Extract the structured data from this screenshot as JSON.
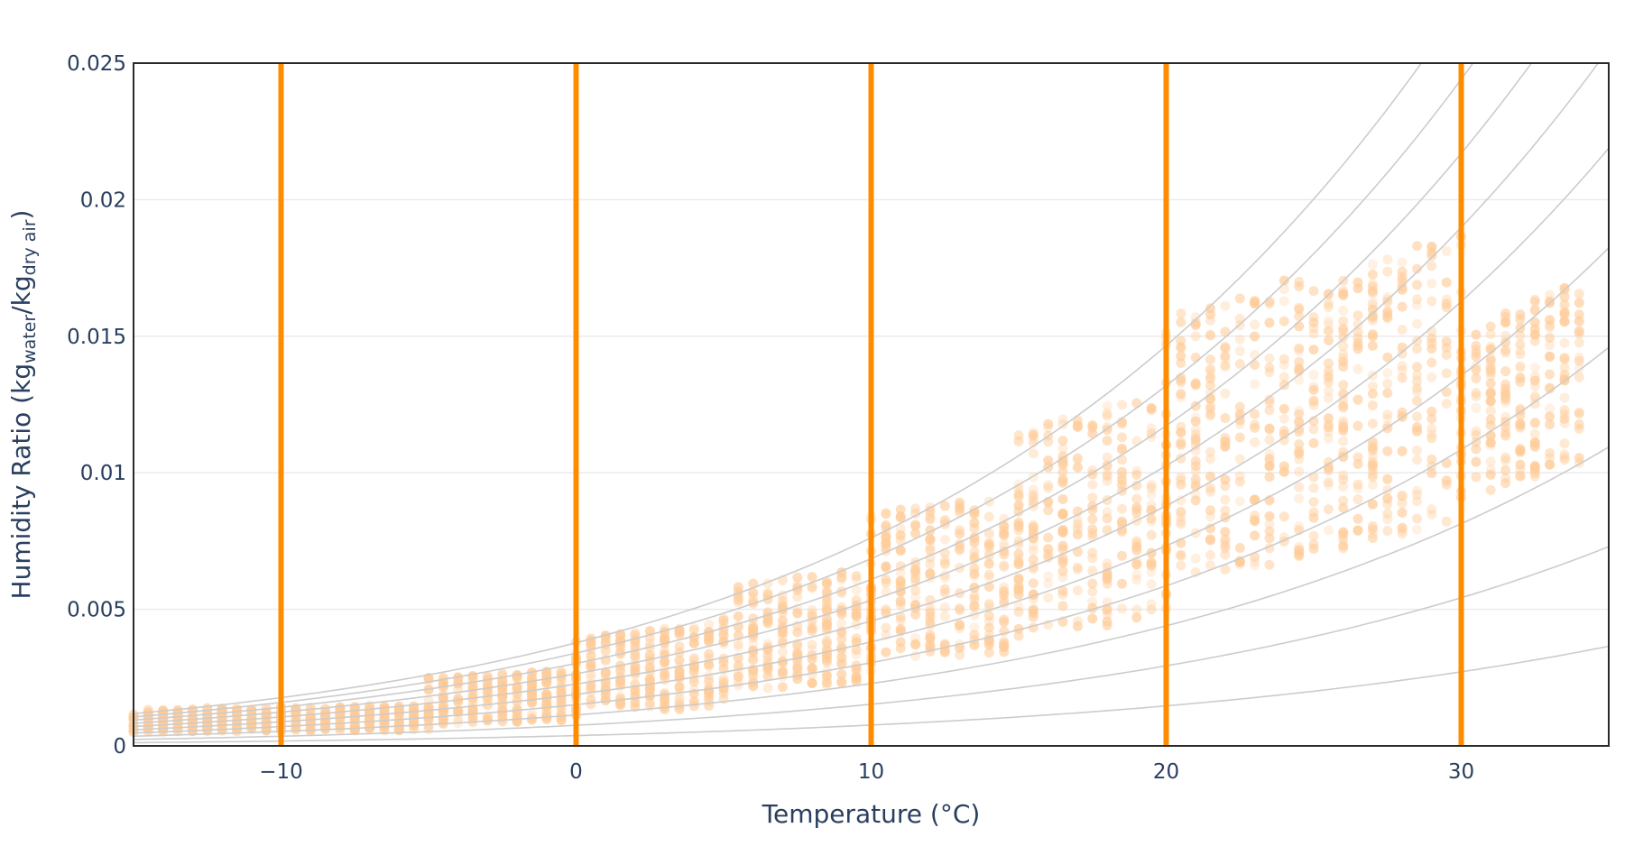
{
  "chart_data": {
    "type": "scatter",
    "title": "",
    "xlabel": "Temperature (°C)",
    "ylabel": {
      "prefix": "Humidity Ratio (kg",
      "sub1": "water",
      "mid": "/kg",
      "sub2": "dry air",
      "suffix": ")"
    },
    "xlim": [
      -15,
      35
    ],
    "ylim": [
      0,
      0.025
    ],
    "x_ticks": [
      -10,
      0,
      10,
      20,
      30
    ],
    "x_tick_labels": [
      "−10",
      "0",
      "10",
      "20",
      "30"
    ],
    "y_ticks": [
      0,
      0.005,
      0.01,
      0.015,
      0.02,
      0.025
    ],
    "y_tick_labels": [
      "0",
      "0.005",
      "0.01",
      "0.015",
      "0.02",
      "0.025"
    ],
    "grid": true,
    "vertical_lines_x": [
      -10,
      0,
      10,
      20,
      30
    ],
    "relative_humidity_curves": [
      0.1,
      0.2,
      0.3,
      0.4,
      0.5,
      0.6,
      0.7,
      0.8,
      0.9,
      1.0
    ],
    "scatter_bands": [
      {
        "x_range": [
          -15,
          -5
        ],
        "y_range": [
          0.0005,
          0.0015
        ]
      },
      {
        "x_range": [
          -5,
          0
        ],
        "y_range": [
          0.0008,
          0.0028
        ]
      },
      {
        "x_range": [
          0,
          5
        ],
        "y_range": [
          0.0012,
          0.0045
        ]
      },
      {
        "x_range": [
          5,
          10
        ],
        "y_range": [
          0.002,
          0.0065
        ]
      },
      {
        "x_range": [
          10,
          15
        ],
        "y_range": [
          0.003,
          0.0095
        ]
      },
      {
        "x_range": [
          15,
          20
        ],
        "y_range": [
          0.004,
          0.013
        ]
      },
      {
        "x_range": [
          20,
          25
        ],
        "y_range": [
          0.006,
          0.0175
        ]
      },
      {
        "x_range": [
          25,
          30
        ],
        "y_range": [
          0.007,
          0.019
        ]
      },
      {
        "x_range": [
          30,
          34
        ],
        "y_range": [
          0.009,
          0.017
        ]
      }
    ],
    "colors": {
      "vertical_line": "#ff8c00",
      "points": "#ffcc99",
      "rh_curves": "#cccccc",
      "grid": "#ebebeb",
      "axis": "#2a2a2a",
      "text": "#2a3f5f"
    }
  }
}
